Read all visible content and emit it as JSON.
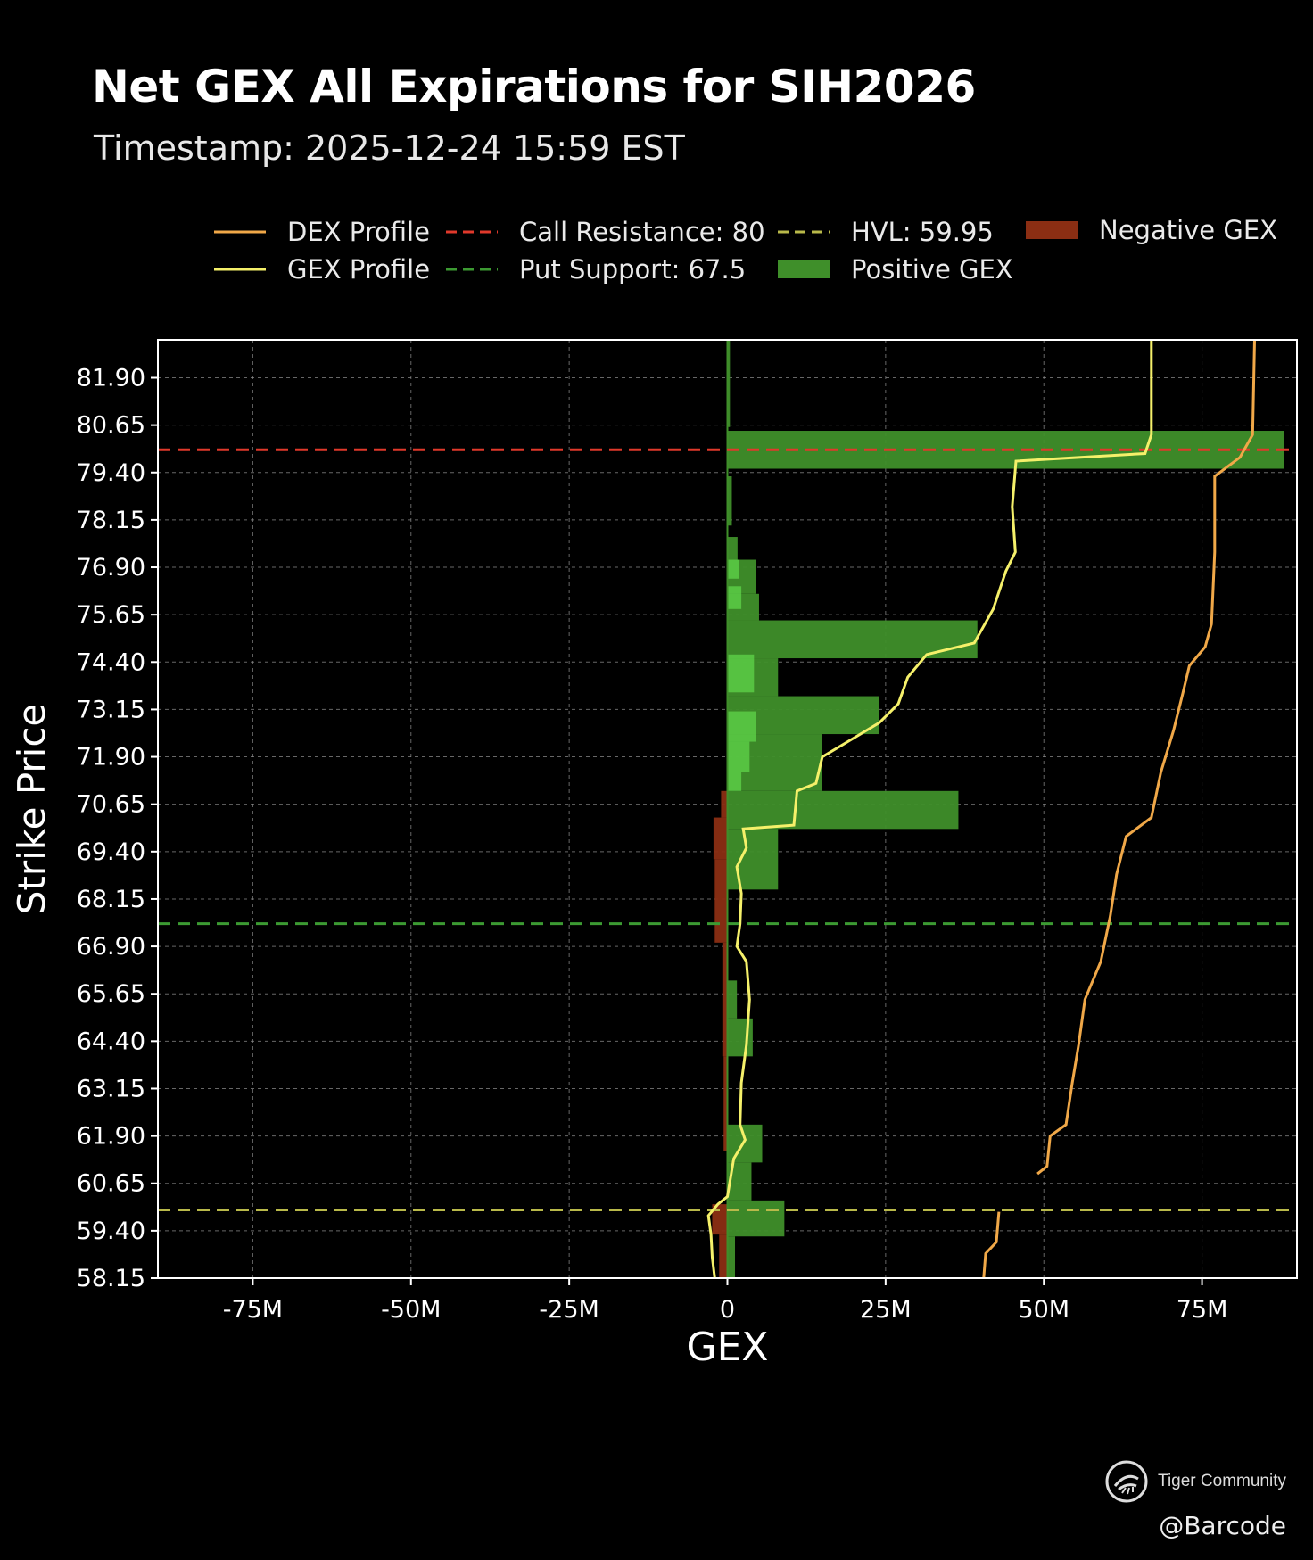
{
  "title": "Net GEX All Expirations for SIH2026",
  "subtitle": "Timestamp: 2025-12-24 15:59 EST",
  "watermark": {
    "brand": "Tiger Community",
    "handle": "@Barcode",
    "logo_icon": "tiger-community-logo"
  },
  "colors": {
    "positive_gex": "#3f8f2a",
    "positive_gex_light": "#5fd64a",
    "negative_gex": "#8b2e13",
    "gex_profile": "#f5f06a",
    "dex_profile": "#f0a848",
    "call_resistance": "#e0392b",
    "put_support": "#3c9a32",
    "hvl": "#b9b94a"
  },
  "chart_data": {
    "type": "bar",
    "orientation": "horizontal",
    "xlabel": "GEX",
    "ylabel": "Strike Price",
    "xlim": [
      -90000000,
      90000000
    ],
    "ylim": [
      58.15,
      82.9
    ],
    "xticks": [
      {
        "v": -75000000,
        "label": "-75M"
      },
      {
        "v": -50000000,
        "label": "-50M"
      },
      {
        "v": -25000000,
        "label": "-25M"
      },
      {
        "v": 0,
        "label": "0"
      },
      {
        "v": 25000000,
        "label": "25M"
      },
      {
        "v": 50000000,
        "label": "50M"
      },
      {
        "v": 75000000,
        "label": "75M"
      }
    ],
    "yticks": [
      "58.15",
      "59.40",
      "60.65",
      "61.90",
      "63.15",
      "64.40",
      "65.65",
      "66.90",
      "68.15",
      "69.40",
      "70.65",
      "71.90",
      "73.15",
      "74.40",
      "75.65",
      "76.90",
      "78.15",
      "79.40",
      "80.65",
      "81.90"
    ],
    "grid": true,
    "legend": {
      "placement": "top",
      "entries": [
        {
          "label": "DEX Profile",
          "style": "line",
          "color": "#f0a848"
        },
        {
          "label": "GEX Profile",
          "style": "line",
          "color": "#f5f06a"
        },
        {
          "label": "Call Resistance: 80",
          "style": "dashed",
          "color": "#e0392b"
        },
        {
          "label": "Put Support: 67.5",
          "style": "dashed",
          "color": "#3c9a32"
        },
        {
          "label": "HVL: 59.95",
          "style": "dashed",
          "color": "#b9b94a"
        },
        {
          "label": "Positive GEX",
          "style": "patch",
          "color": "#3f8f2a"
        },
        {
          "label": "Negative GEX",
          "style": "patch",
          "color": "#8b2e13"
        }
      ]
    },
    "reference_lines": [
      {
        "name": "Call Resistance",
        "value": 80,
        "color": "#e0392b"
      },
      {
        "name": "Put Support",
        "value": 67.5,
        "color": "#3c9a32"
      },
      {
        "name": "HVL",
        "value": 59.95,
        "color": "#b9b94a"
      }
    ],
    "positive_gex": [
      {
        "y0": 79.5,
        "y1": 80.5,
        "value": 88000000
      },
      {
        "y0": 70.0,
        "y1": 71.0,
        "value": 36500000
      },
      {
        "y0": 74.5,
        "y1": 75.5,
        "value": 39500000
      },
      {
        "y0": 72.5,
        "y1": 73.5,
        "value": 24000000
      },
      {
        "y0": 71.0,
        "y1": 72.5,
        "value": 15000000
      },
      {
        "y0": 73.5,
        "y1": 74.5,
        "value": 8000000
      },
      {
        "y0": 68.4,
        "y1": 70.0,
        "value": 8000000
      },
      {
        "y0": 75.5,
        "y1": 76.2,
        "value": 5000000
      },
      {
        "y0": 76.2,
        "y1": 77.1,
        "value": 4500000
      },
      {
        "y0": 77.1,
        "y1": 77.7,
        "value": 1600000
      },
      {
        "y0": 64.0,
        "y1": 65.0,
        "value": 4000000
      },
      {
        "y0": 61.2,
        "y1": 62.2,
        "value": 5500000
      },
      {
        "y0": 60.2,
        "y1": 61.2,
        "value": 3800000
      },
      {
        "y0": 59.25,
        "y1": 60.2,
        "value": 9000000
      },
      {
        "y0": 65.0,
        "y1": 66.0,
        "value": 1500000
      },
      {
        "y0": 58.15,
        "y1": 59.25,
        "value": 1200000
      },
      {
        "y0": 78.0,
        "y1": 79.3,
        "value": 700000
      },
      {
        "y0": 80.6,
        "y1": 82.9,
        "value": 400000
      }
    ],
    "positive_gex_light": [
      {
        "y0": 72.3,
        "y1": 73.1,
        "value": 4500000
      },
      {
        "y0": 71.5,
        "y1": 72.3,
        "value": 3500000
      },
      {
        "y0": 73.6,
        "y1": 74.6,
        "value": 4200000
      },
      {
        "y0": 75.8,
        "y1": 76.4,
        "value": 2200000
      },
      {
        "y0": 71.0,
        "y1": 71.5,
        "value": 2200000
      },
      {
        "y0": 76.6,
        "y1": 77.1,
        "value": 1800000
      }
    ],
    "negative_gex": [
      {
        "y0": 69.2,
        "y1": 70.3,
        "value": -2200000
      },
      {
        "y0": 70.3,
        "y1": 71.0,
        "value": -1000000
      },
      {
        "y0": 67.0,
        "y1": 69.2,
        "value": -2000000
      },
      {
        "y0": 64.0,
        "y1": 67.0,
        "value": -800000
      },
      {
        "y0": 61.5,
        "y1": 64.0,
        "value": -600000
      },
      {
        "y0": 59.3,
        "y1": 60.1,
        "value": -2400000
      },
      {
        "y0": 58.15,
        "y1": 59.3,
        "value": -1300000
      }
    ],
    "gex_profile": [
      {
        "x": -2000000,
        "y": 58.15
      },
      {
        "x": -2400000,
        "y": 58.7
      },
      {
        "x": -2600000,
        "y": 59.3
      },
      {
        "x": -3000000,
        "y": 59.8
      },
      {
        "x": -1500000,
        "y": 60.1
      },
      {
        "x": 0,
        "y": 60.3
      },
      {
        "x": 1000000,
        "y": 61.3
      },
      {
        "x": 2800000,
        "y": 61.8
      },
      {
        "x": 2000000,
        "y": 62.2
      },
      {
        "x": 2200000,
        "y": 63.3
      },
      {
        "x": 3000000,
        "y": 64.3
      },
      {
        "x": 3500000,
        "y": 65.5
      },
      {
        "x": 3000000,
        "y": 66.5
      },
      {
        "x": 1500000,
        "y": 66.9
      },
      {
        "x": 2000000,
        "y": 67.5
      },
      {
        "x": 2200000,
        "y": 68.3
      },
      {
        "x": 1500000,
        "y": 69.0
      },
      {
        "x": 3000000,
        "y": 69.5
      },
      {
        "x": 2500000,
        "y": 70.0
      },
      {
        "x": 10500000,
        "y": 70.1
      },
      {
        "x": 11000000,
        "y": 71.0
      },
      {
        "x": 14000000,
        "y": 71.2
      },
      {
        "x": 15000000,
        "y": 71.9
      },
      {
        "x": 19000000,
        "y": 72.3
      },
      {
        "x": 24000000,
        "y": 72.8
      },
      {
        "x": 27000000,
        "y": 73.3
      },
      {
        "x": 28500000,
        "y": 74.0
      },
      {
        "x": 31500000,
        "y": 74.6
      },
      {
        "x": 39000000,
        "y": 74.9
      },
      {
        "x": 42000000,
        "y": 75.8
      },
      {
        "x": 44000000,
        "y": 76.8
      },
      {
        "x": 45500000,
        "y": 77.3
      },
      {
        "x": 45000000,
        "y": 78.5
      },
      {
        "x": 45600000,
        "y": 79.7
      },
      {
        "x": 66000000,
        "y": 79.9
      },
      {
        "x": 67000000,
        "y": 80.4
      },
      {
        "x": 67000000,
        "y": 82.9
      }
    ],
    "dex_profile_segments": [
      [
        {
          "x": 40500000,
          "y": 58.15
        },
        {
          "x": 40800000,
          "y": 58.8
        },
        {
          "x": 42500000,
          "y": 59.1
        },
        {
          "x": 42900000,
          "y": 59.9
        }
      ],
      [
        {
          "x": 49000000,
          "y": 60.9
        },
        {
          "x": 50500000,
          "y": 61.1
        },
        {
          "x": 51000000,
          "y": 61.9
        },
        {
          "x": 53500000,
          "y": 62.2
        },
        {
          "x": 54500000,
          "y": 63.3
        },
        {
          "x": 55500000,
          "y": 64.3
        },
        {
          "x": 56500000,
          "y": 65.5
        },
        {
          "x": 59000000,
          "y": 66.5
        },
        {
          "x": 60500000,
          "y": 67.7
        },
        {
          "x": 61500000,
          "y": 68.8
        },
        {
          "x": 63000000,
          "y": 69.8
        },
        {
          "x": 67000000,
          "y": 70.3
        },
        {
          "x": 68500000,
          "y": 71.5
        },
        {
          "x": 70500000,
          "y": 72.6
        },
        {
          "x": 72000000,
          "y": 73.6
        },
        {
          "x": 73000000,
          "y": 74.3
        },
        {
          "x": 75500000,
          "y": 74.8
        },
        {
          "x": 76500000,
          "y": 75.4
        },
        {
          "x": 77000000,
          "y": 77.3
        },
        {
          "x": 77000000,
          "y": 79.3
        },
        {
          "x": 81000000,
          "y": 79.8
        },
        {
          "x": 83000000,
          "y": 80.4
        },
        {
          "x": 83300000,
          "y": 82.9
        }
      ]
    ]
  }
}
